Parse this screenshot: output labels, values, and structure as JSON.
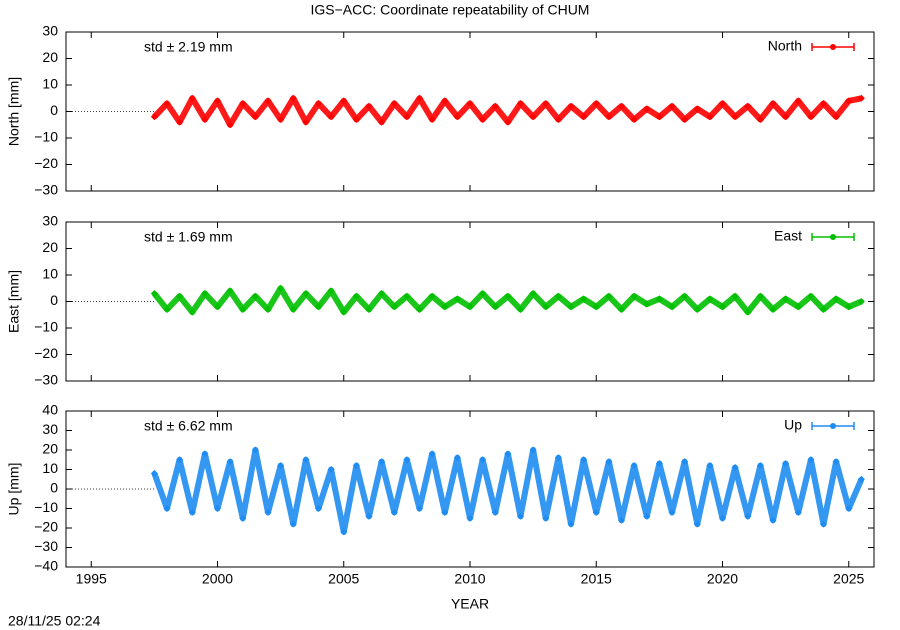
{
  "title": "IGS−ACC: Coordinate repeatability of CHUM",
  "timestamp": "28/11/25 02:24",
  "chart_data": [
    {
      "type": "scatter",
      "ylabel": "North [mm]",
      "annotation": "std ± 2.19 mm",
      "legend": "upper right",
      "xlim": [
        1994,
        2026
      ],
      "xticks": [
        1995,
        2000,
        2005,
        2010,
        2015,
        2020,
        2025
      ],
      "ylim": [
        -30,
        30
      ],
      "yticks": [
        30,
        20,
        10,
        0,
        {
          "value": -10,
          "label": "−10"
        },
        {
          "value": -20,
          "label": "−20"
        },
        {
          "value": -30,
          "label": "−30"
        }
      ],
      "series": [
        {
          "name": "North",
          "color": "#ff0000",
          "x": [
            1997.5,
            1998,
            1998.5,
            1999,
            1999.5,
            2000,
            2000.5,
            2001,
            2001.5,
            2002,
            2002.5,
            2003,
            2003.5,
            2004,
            2004.5,
            2005,
            2005.5,
            2006,
            2006.5,
            2007,
            2007.5,
            2008,
            2008.5,
            2009,
            2009.5,
            2010,
            2010.5,
            2011,
            2011.5,
            2012,
            2012.5,
            2013,
            2013.5,
            2014,
            2014.5,
            2015,
            2015.5,
            2016,
            2016.5,
            2017,
            2017.5,
            2018,
            2018.5,
            2019,
            2019.5,
            2020,
            2020.5,
            2021,
            2021.5,
            2022,
            2022.5,
            2023,
            2023.5,
            2024,
            2024.5,
            2025,
            2025.5
          ],
          "values": [
            -2,
            3,
            -4,
            5,
            -3,
            4,
            -5,
            3,
            -2,
            4,
            -3,
            5,
            -4,
            3,
            -2,
            4,
            -3,
            2,
            -4,
            3,
            -2,
            5,
            -3,
            4,
            -2,
            3,
            -3,
            2,
            -4,
            3,
            -2,
            3,
            -3,
            2,
            -2,
            3,
            -2,
            2,
            -3,
            1,
            -2,
            2,
            -3,
            1,
            -2,
            3,
            -2,
            2,
            -3,
            3,
            -2,
            4,
            -2,
            3,
            -2,
            4,
            5
          ]
        }
      ]
    },
    {
      "type": "scatter",
      "ylabel": "East [mm]",
      "annotation": "std ± 1.69 mm",
      "legend": "upper right",
      "xlim": [
        1994,
        2026
      ],
      "xticks": [
        1995,
        2000,
        2005,
        2010,
        2015,
        2020,
        2025
      ],
      "ylim": [
        -30,
        30
      ],
      "yticks": [
        30,
        20,
        10,
        0,
        {
          "value": -10,
          "label": "−10"
        },
        {
          "value": -20,
          "label": "−20"
        },
        {
          "value": -30,
          "label": "−30"
        }
      ],
      "series": [
        {
          "name": "East",
          "color": "#00c000",
          "x": [
            1997.5,
            1998,
            1998.5,
            1999,
            1999.5,
            2000,
            2000.5,
            2001,
            2001.5,
            2002,
            2002.5,
            2003,
            2003.5,
            2004,
            2004.5,
            2005,
            2005.5,
            2006,
            2006.5,
            2007,
            2007.5,
            2008,
            2008.5,
            2009,
            2009.5,
            2010,
            2010.5,
            2011,
            2011.5,
            2012,
            2012.5,
            2013,
            2013.5,
            2014,
            2014.5,
            2015,
            2015.5,
            2016,
            2016.5,
            2017,
            2017.5,
            2018,
            2018.5,
            2019,
            2019.5,
            2020,
            2020.5,
            2021,
            2021.5,
            2022,
            2022.5,
            2023,
            2023.5,
            2024,
            2024.5,
            2025,
            2025.5
          ],
          "values": [
            3,
            -3,
            2,
            -4,
            3,
            -2,
            4,
            -3,
            2,
            -3,
            5,
            -3,
            3,
            -2,
            4,
            -4,
            2,
            -3,
            3,
            -2,
            2,
            -3,
            2,
            -2,
            1,
            -2,
            3,
            -2,
            2,
            -3,
            3,
            -2,
            2,
            -2,
            1,
            -2,
            2,
            -3,
            2,
            -1,
            1,
            -2,
            2,
            -3,
            1,
            -2,
            2,
            -4,
            2,
            -3,
            1,
            -2,
            2,
            -3,
            1,
            -2,
            0
          ]
        }
      ]
    },
    {
      "type": "scatter",
      "ylabel": "Up [mm]",
      "annotation": "std ± 6.62 mm",
      "legend": "upper right",
      "xlabel": "YEAR",
      "xlim": [
        1994,
        2026
      ],
      "xticks": [
        1995,
        2000,
        2005,
        2010,
        2015,
        2020,
        2025
      ],
      "ylim": [
        -40,
        40
      ],
      "yticks": [
        40,
        30,
        20,
        10,
        0,
        {
          "value": -10,
          "label": "−10"
        },
        {
          "value": -20,
          "label": "−20"
        },
        {
          "value": -30,
          "label": "−30"
        },
        {
          "value": -40,
          "label": "−40"
        }
      ],
      "series": [
        {
          "name": "Up",
          "color": "#1e8cf0",
          "x": [
            1997.5,
            1998,
            1998.5,
            1999,
            1999.5,
            2000,
            2000.5,
            2001,
            2001.5,
            2002,
            2002.5,
            2003,
            2003.5,
            2004,
            2004.5,
            2005,
            2005.5,
            2006,
            2006.5,
            2007,
            2007.5,
            2008,
            2008.5,
            2009,
            2009.5,
            2010,
            2010.5,
            2011,
            2011.5,
            2012,
            2012.5,
            2013,
            2013.5,
            2014,
            2014.5,
            2015,
            2015.5,
            2016,
            2016.5,
            2017,
            2017.5,
            2018,
            2018.5,
            2019,
            2019.5,
            2020,
            2020.5,
            2021,
            2021.5,
            2022,
            2022.5,
            2023,
            2023.5,
            2024,
            2024.5,
            2025,
            2025.5
          ],
          "values": [
            8,
            -10,
            15,
            -12,
            18,
            -10,
            14,
            -15,
            20,
            -12,
            12,
            -18,
            15,
            -10,
            10,
            -22,
            12,
            -14,
            14,
            -12,
            15,
            -10,
            18,
            -12,
            16,
            -15,
            15,
            -12,
            18,
            -14,
            20,
            -15,
            16,
            -18,
            15,
            -12,
            14,
            -16,
            12,
            -14,
            13,
            -12,
            14,
            -18,
            12,
            -15,
            11,
            -14,
            12,
            -16,
            13,
            -12,
            15,
            -18,
            14,
            -10,
            5
          ]
        }
      ]
    }
  ]
}
